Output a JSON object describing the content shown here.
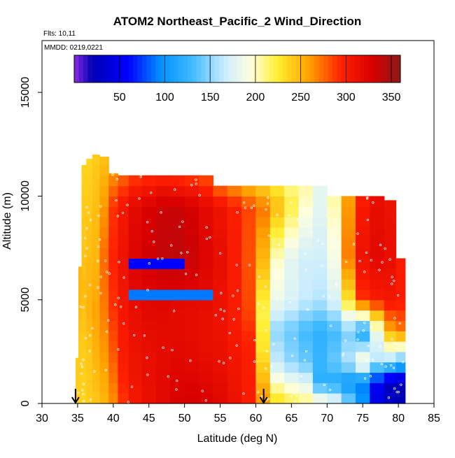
{
  "title": "ATOM2 Northeast_Pacific_2 Wind_Direction",
  "flights_label": "Flts: 10,11",
  "date_label": "MMDD: 0219,0221",
  "chart_data": {
    "type": "heatmap",
    "title": "ATOM2 Northeast_Pacific_2 Wind_Direction",
    "xlabel": "Latitude (deg N)",
    "ylabel": "Altitude (m)",
    "xlim": [
      30,
      85
    ],
    "ylim": [
      0,
      17500
    ],
    "x_ticks": [
      30,
      35,
      40,
      45,
      50,
      55,
      60,
      65,
      70,
      75,
      80,
      85
    ],
    "y_ticks": [
      0,
      5000,
      10000,
      15000
    ],
    "colorbar": {
      "range": [
        0,
        360
      ],
      "ticks": [
        50,
        100,
        150,
        200,
        250,
        300,
        350
      ],
      "stops": [
        [
          0,
          "#8a2be2"
        ],
        [
          20,
          "#0000b4"
        ],
        [
          60,
          "#0000ff"
        ],
        [
          95,
          "#0090ff"
        ],
        [
          130,
          "#3fbaff"
        ],
        [
          165,
          "#c8ecff"
        ],
        [
          195,
          "#ffffe0"
        ],
        [
          225,
          "#ffee30"
        ],
        [
          260,
          "#ffa000"
        ],
        [
          295,
          "#ff2000"
        ],
        [
          330,
          "#d60000"
        ],
        [
          360,
          "#8b1a1a"
        ]
      ]
    },
    "arrows_at_latitude": [
      34.7,
      61.1
    ],
    "columns": [
      {
        "lat": 34.9,
        "top": 2200,
        "values": [
          [
            0,
            240
          ]
        ]
      },
      {
        "lat": 35.3,
        "top": 6600,
        "values": [
          [
            0,
            238
          ],
          [
            3000,
            242
          ],
          [
            4800,
            250
          ]
        ]
      },
      {
        "lat": 35.8,
        "top": 11500,
        "values": [
          [
            0,
            237
          ],
          [
            3000,
            241
          ],
          [
            5500,
            248
          ],
          [
            8000,
            243
          ],
          [
            11500,
            238
          ]
        ]
      },
      {
        "lat": 36.6,
        "top": 11800,
        "values": [
          [
            0,
            240
          ],
          [
            2500,
            243
          ],
          [
            4500,
            252
          ],
          [
            7000,
            248
          ],
          [
            9500,
            242
          ],
          [
            11800,
            236
          ]
        ]
      },
      {
        "lat": 37.5,
        "top": 12000,
        "values": [
          [
            0,
            243
          ],
          [
            2500,
            252
          ],
          [
            4500,
            258
          ],
          [
            7000,
            250
          ],
          [
            9500,
            247
          ],
          [
            12000,
            240
          ]
        ]
      },
      {
        "lat": 38.7,
        "top": 11900,
        "values": [
          [
            0,
            250
          ],
          [
            2500,
            262
          ],
          [
            4500,
            270
          ],
          [
            7000,
            275
          ],
          [
            9500,
            262
          ],
          [
            11900,
            245
          ]
        ]
      },
      {
        "lat": 40.0,
        "top": 11100,
        "values": [
          [
            0,
            265
          ],
          [
            2500,
            280
          ],
          [
            4500,
            290
          ],
          [
            7000,
            295
          ],
          [
            9500,
            290
          ],
          [
            11100,
            262
          ]
        ]
      },
      {
        "lat": 41.3,
        "top": 11000,
        "values": [
          [
            0,
            290
          ],
          [
            2500,
            300
          ],
          [
            4500,
            305
          ],
          [
            7000,
            310
          ],
          [
            9500,
            305
          ],
          [
            11000,
            275
          ]
        ]
      },
      {
        "lat": 43.0,
        "top": 11000,
        "values": [
          [
            0,
            305
          ],
          [
            2500,
            310
          ],
          [
            4500,
            315
          ],
          [
            7000,
            325
          ],
          [
            9500,
            320
          ],
          [
            11000,
            285
          ]
        ]
      },
      {
        "lat": 45.0,
        "top": 11000,
        "values": [
          [
            0,
            315
          ],
          [
            2500,
            315
          ],
          [
            4500,
            320
          ],
          [
            7000,
            332
          ],
          [
            9500,
            328
          ],
          [
            11000,
            290
          ]
        ]
      },
      {
        "lat": 47.0,
        "top": 11000,
        "values": [
          [
            0,
            322
          ],
          [
            2500,
            318
          ],
          [
            4500,
            320
          ],
          [
            7000,
            338
          ],
          [
            9500,
            335
          ],
          [
            11000,
            292
          ]
        ]
      },
      {
        "lat": 49.0,
        "top": 11000,
        "values": [
          [
            0,
            328
          ],
          [
            2500,
            320
          ],
          [
            4500,
            318
          ],
          [
            7000,
            340
          ],
          [
            9500,
            335
          ],
          [
            11000,
            290
          ]
        ]
      },
      {
        "lat": 51.0,
        "top": 11000,
        "values": [
          [
            0,
            330
          ],
          [
            2500,
            318
          ],
          [
            4500,
            316
          ],
          [
            7000,
            335
          ],
          [
            9500,
            330
          ],
          [
            11000,
            285
          ]
        ]
      },
      {
        "lat": 53.0,
        "top": 11000,
        "values": [
          [
            0,
            328
          ],
          [
            2500,
            315
          ],
          [
            4500,
            315
          ],
          [
            7000,
            325
          ],
          [
            9500,
            320
          ],
          [
            11000,
            280
          ]
        ]
      },
      {
        "lat": 55.0,
        "top": 10500,
        "values": [
          [
            0,
            322
          ],
          [
            2500,
            312
          ],
          [
            4500,
            310
          ],
          [
            7000,
            315
          ],
          [
            9500,
            310
          ],
          [
            10500,
            272
          ]
        ]
      },
      {
        "lat": 57.0,
        "top": 10500,
        "values": [
          [
            0,
            312
          ],
          [
            2500,
            305
          ],
          [
            4500,
            300
          ],
          [
            7000,
            300
          ],
          [
            9500,
            298
          ],
          [
            10500,
            262
          ]
        ]
      },
      {
        "lat": 59.0,
        "top": 10500,
        "values": [
          [
            0,
            300
          ],
          [
            2500,
            298
          ],
          [
            4500,
            285
          ],
          [
            7000,
            282
          ],
          [
            9500,
            285
          ],
          [
            10500,
            250
          ]
        ]
      },
      {
        "lat": 61.0,
        "top": 10500,
        "values": [
          [
            0,
            265
          ],
          [
            2500,
            230
          ],
          [
            4500,
            220
          ],
          [
            7000,
            250
          ],
          [
            9500,
            272
          ],
          [
            10500,
            238
          ]
        ]
      },
      {
        "lat": 63.0,
        "top": 10500,
        "values": [
          [
            0,
            235
          ],
          [
            2000,
            165
          ],
          [
            3500,
            150
          ],
          [
            5000,
            185
          ],
          [
            7000,
            200
          ],
          [
            9500,
            248
          ],
          [
            10500,
            225
          ]
        ]
      },
      {
        "lat": 65.0,
        "top": 10500,
        "values": [
          [
            0,
            225
          ],
          [
            2000,
            150
          ],
          [
            3500,
            140
          ],
          [
            5000,
            175
          ],
          [
            7000,
            180
          ],
          [
            9500,
            222
          ],
          [
            10500,
            210
          ]
        ]
      },
      {
        "lat": 67.0,
        "top": 10500,
        "values": [
          [
            0,
            215
          ],
          [
            2000,
            140
          ],
          [
            3500,
            130
          ],
          [
            5000,
            165
          ],
          [
            7000,
            170
          ],
          [
            9500,
            198
          ],
          [
            10500,
            205
          ]
        ]
      },
      {
        "lat": 69.0,
        "top": 10500,
        "values": [
          [
            0,
            205
          ],
          [
            1000,
            120
          ],
          [
            2000,
            125
          ],
          [
            3500,
            122
          ],
          [
            5000,
            160
          ],
          [
            7000,
            170
          ],
          [
            9500,
            180
          ]
        ]
      },
      {
        "lat": 71.0,
        "top": 10000,
        "values": [
          [
            0,
            190
          ],
          [
            1000,
            115
          ],
          [
            2000,
            140
          ],
          [
            3500,
            130
          ],
          [
            5000,
            175
          ],
          [
            7000,
            190
          ],
          [
            10000,
            205
          ]
        ]
      },
      {
        "lat": 73.0,
        "top": 10000,
        "values": [
          [
            0,
            150
          ],
          [
            1000,
            100
          ],
          [
            2000,
            160
          ],
          [
            3500,
            145
          ],
          [
            5000,
            230
          ],
          [
            7000,
            270
          ],
          [
            10000,
            260
          ]
        ]
      },
      {
        "lat": 75.0,
        "top": 10000,
        "values": [
          [
            0,
            100
          ],
          [
            1000,
            90
          ],
          [
            2000,
            200
          ],
          [
            3500,
            110
          ],
          [
            5000,
            290
          ],
          [
            7000,
            310
          ],
          [
            10000,
            300
          ]
        ]
      },
      {
        "lat": 77.0,
        "top": 10000,
        "values": [
          [
            0,
            45
          ],
          [
            1000,
            55
          ],
          [
            2000,
            160
          ],
          [
            3500,
            185
          ],
          [
            5000,
            300
          ],
          [
            7000,
            320
          ],
          [
            10000,
            315
          ]
        ]
      },
      {
        "lat": 79.0,
        "top": 9800,
        "values": [
          [
            0,
            30
          ],
          [
            1000,
            25
          ],
          [
            2000,
            150
          ],
          [
            3500,
            255
          ],
          [
            5000,
            305
          ],
          [
            7000,
            315
          ],
          [
            9800,
            310
          ]
        ]
      },
      {
        "lat": 80.3,
        "top": 7000,
        "values": [
          [
            0,
            20
          ],
          [
            1000,
            20
          ],
          [
            2000,
            130
          ],
          [
            3500,
            270
          ],
          [
            5000,
            300
          ],
          [
            7000,
            300
          ]
        ]
      }
    ],
    "anomalies": [
      {
        "lat_range": [
          41.5,
          50.5
        ],
        "alt_range": [
          6400,
          7000
        ],
        "value": 60
      },
      {
        "lat_range": [
          41.5,
          54
        ],
        "alt_range": [
          4900,
          5400
        ],
        "value": 90
      }
    ]
  }
}
